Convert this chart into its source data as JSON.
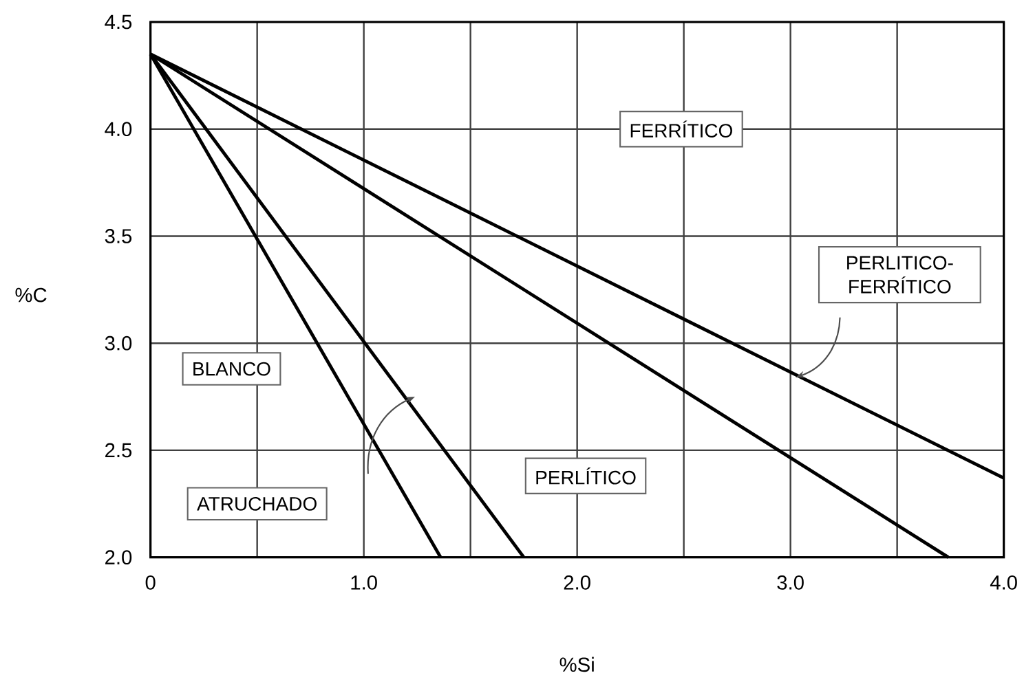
{
  "chart_data": {
    "type": "line",
    "xlabel": "%Si",
    "ylabel": "%C",
    "series": [
      {
        "color": "#000000",
        "x": [
          0,
          1.36
        ],
        "values": [
          4.35,
          2.0
        ]
      },
      {
        "color": "#000000",
        "x": [
          0,
          1.75
        ],
        "values": [
          4.35,
          2.0
        ]
      },
      {
        "color": "#000000",
        "x": [
          0,
          3.74
        ],
        "values": [
          4.35,
          2.0
        ]
      },
      {
        "color": "#000000",
        "x": [
          0,
          4.0
        ],
        "values": [
          4.35,
          2.37
        ]
      }
    ],
    "xlim": [
      0,
      4.0
    ],
    "ylim": [
      2.0,
      4.5
    ],
    "xticks": [
      0,
      {
        "value": 0.5,
        "label": null
      },
      {
        "value": 1.0,
        "label": "1.0"
      },
      {
        "value": 1.5,
        "label": null
      },
      {
        "value": 2.0,
        "label": "2.0"
      },
      {
        "value": 2.5,
        "label": null
      },
      {
        "value": 3.0,
        "label": "3.0"
      },
      {
        "value": 3.5,
        "label": null
      },
      {
        "value": 4.0,
        "label": "4.0"
      }
    ],
    "yticks": [
      {
        "value": 2.0,
        "label": "2.0"
      },
      2.5,
      {
        "value": 3.0,
        "label": "3.0"
      },
      3.5,
      {
        "value": 4.0,
        "label": "4.0"
      },
      4.5
    ],
    "grid": true,
    "annotations": [
      "FERRÍTICO",
      "PERLITICO-FERRÍTICO",
      "BLANCO",
      "ATRUCHADO",
      "PERLÍTICO"
    ]
  }
}
